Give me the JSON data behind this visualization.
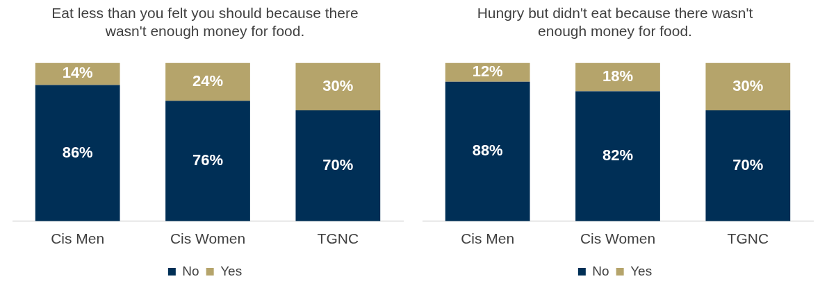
{
  "chart_data": [
    {
      "type": "bar",
      "stacked": true,
      "title": "Eat less than you felt you should because there wasn't enough money for food.",
      "categories": [
        "Cis Men",
        "Cis Women",
        "TGNC"
      ],
      "ylim": [
        0,
        100
      ],
      "grid": false,
      "legend": "bottom",
      "series": [
        {
          "name": "No",
          "color": "#002f56",
          "values": [
            86,
            76,
            70
          ],
          "value_labels": [
            "86%",
            "76%",
            "70%"
          ]
        },
        {
          "name": "Yes",
          "color": "#b5a46b",
          "values": [
            14,
            24,
            30
          ],
          "value_labels": [
            "14%",
            "24%",
            "30%"
          ]
        }
      ]
    },
    {
      "type": "bar",
      "stacked": true,
      "title": "Hungry but didn't eat because there wasn't enough money for food.",
      "categories": [
        "Cis Men",
        "Cis Women",
        "TGNC"
      ],
      "ylim": [
        0,
        100
      ],
      "grid": false,
      "legend": "bottom",
      "series": [
        {
          "name": "No",
          "color": "#002f56",
          "values": [
            88,
            82,
            70
          ],
          "value_labels": [
            "88%",
            "82%",
            "70%"
          ]
        },
        {
          "name": "Yes",
          "color": "#b5a46b",
          "values": [
            12,
            18,
            30
          ],
          "value_labels": [
            "12%",
            "18%",
            "30%"
          ]
        }
      ]
    }
  ]
}
